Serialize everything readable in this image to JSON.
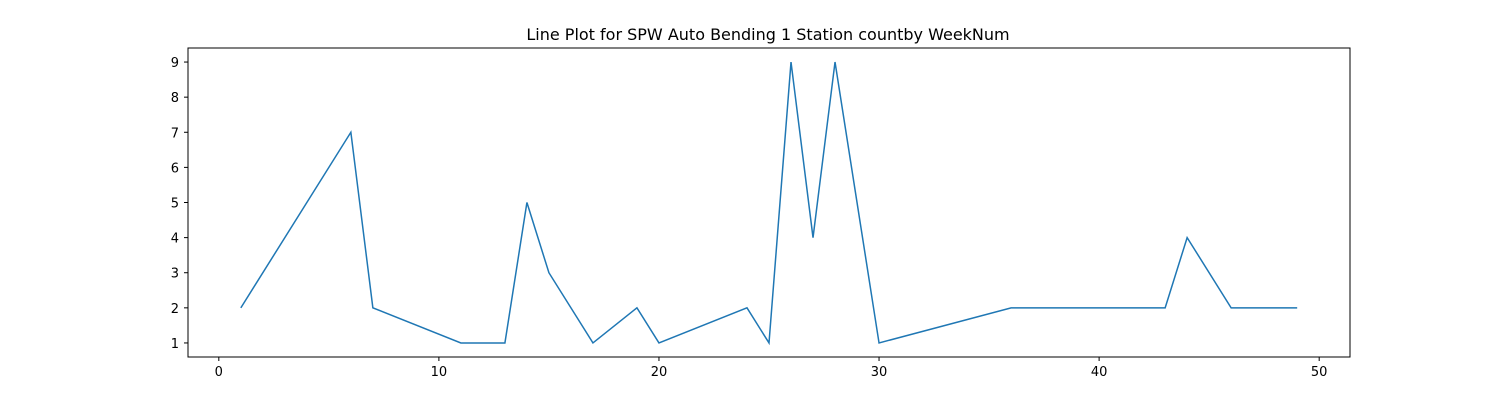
{
  "chart_data": {
    "type": "line",
    "title": "Line Plot for SPW Auto Bending 1 Station countby WeekNum",
    "xlabel": "",
    "ylabel": "",
    "xlim": [
      -1.4,
      51.4
    ],
    "ylim": [
      0.6,
      9.4
    ],
    "xticks": [
      0,
      10,
      20,
      30,
      40,
      50
    ],
    "yticks": [
      1,
      2,
      3,
      4,
      5,
      6,
      7,
      8,
      9
    ],
    "grid": false,
    "series": [
      {
        "color": "#1f77b4",
        "x": [
          1,
          6,
          7,
          11,
          13,
          14,
          15,
          17,
          19,
          20,
          24,
          25,
          26,
          27,
          28,
          30,
          36,
          43,
          44,
          46,
          49
        ],
        "y": [
          2,
          7,
          2,
          1,
          1,
          5,
          3,
          1,
          2,
          1,
          2,
          1,
          9,
          4,
          9,
          1,
          2,
          2,
          4,
          2,
          2
        ]
      }
    ]
  }
}
